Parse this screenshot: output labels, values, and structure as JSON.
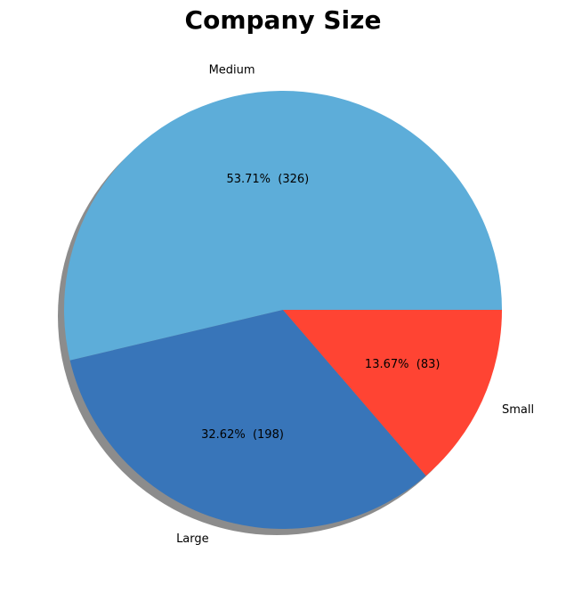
{
  "chart_data": {
    "type": "pie",
    "title": "Company Size",
    "shadow": true,
    "start_angle_deg": 0,
    "direction": "counterclockwise",
    "slices": [
      {
        "label": "Medium",
        "value": 326,
        "percent_label": "53.71%  (326)",
        "color": "#5DADD9"
      },
      {
        "label": "Large",
        "value": 198,
        "percent_label": "32.62%  (198)",
        "color": "#3875B9"
      },
      {
        "label": "Small",
        "value": 83,
        "percent_label": "13.67%  (83)",
        "color": "#FF4433"
      }
    ]
  }
}
